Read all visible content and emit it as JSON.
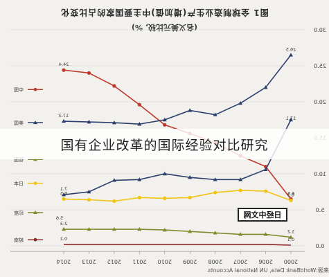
{
  "header": {
    "title": "图1 全球制造业生产(增加值)中主要国家的占比变化",
    "subtitle": "(名义美元比较, %)"
  },
  "overlay_caption": "国有企业改革的国际经验对比研究",
  "stamp_text": "日经中文网",
  "source_text": "来源:WorldBank Data, UN National Accounts",
  "colors": {
    "background": "#f3f1ee",
    "china": "#c0392b",
    "usa": "#2c3e6b",
    "japan": "#f1c40f",
    "germany": "#7f8c2a",
    "india": "#8e2a2a",
    "grid": "#cfcfcf"
  },
  "chart_data": {
    "type": "line",
    "x": [
      "2014",
      "2013",
      "2012",
      "2011",
      "2010",
      "2009",
      "2008",
      "2007",
      "2006",
      "2000"
    ],
    "ylim": [
      0,
      30
    ],
    "yticks": [
      "0.0",
      "5.0",
      "10.0",
      "15.0",
      "20.0",
      "25.0",
      "30.0"
    ],
    "series": [
      {
        "name": "中国",
        "color": "#c0392b",
        "marker": "circle",
        "values": [
          24.4,
          24.0,
          22.2,
          19.6,
          16.8,
          15.6,
          14.3,
          12.5,
          11.0,
          6.5
        ],
        "first_label": "24.4",
        "last_label": "6.5"
      },
      {
        "name": "美国",
        "color": "#2c3e6b",
        "marker": "triangle",
        "values": [
          17.3,
          17.2,
          17.1,
          16.9,
          17.5,
          18.8,
          18.2,
          19.8,
          22.0,
          26.5
        ],
        "first_label": "17.3",
        "last_label": "26.5",
        "end_label": "17.1"
      },
      {
        "name": "德国",
        "color": "#2c3e6b",
        "marker": "triangle",
        "values": [
          7.1,
          7.5,
          9.1,
          9.2,
          10.0,
          9.5,
          9.2,
          9.2,
          10.6,
          17.5
        ],
        "first_label": "7.1",
        "last_label": ""
      },
      {
        "name": "日本",
        "color": "#f1c40f",
        "marker": "circle",
        "values": [
          6.5,
          6.4,
          6.2,
          6.7,
          6.6,
          6.7,
          7.4,
          7.7,
          7.6,
          6.3
        ],
        "first_label": "6.5",
        "last_label": "6.3"
      },
      {
        "name": "印度",
        "color": "#7f8c2a",
        "marker": "triangle",
        "values": [
          2.3,
          2.3,
          2.3,
          2.3,
          2.2,
          2.0,
          1.8,
          1.6,
          1.6,
          1.2
        ],
        "first_label": "2.3",
        "last_label": "1.2"
      },
      {
        "name": "越南",
        "color": "#8e2a2a",
        "marker": "none",
        "values": [
          0.2,
          0.2,
          0.2,
          0.2,
          0.2,
          0.2,
          0.2,
          0.2,
          0.2,
          0.1
        ],
        "first_label": "0.2",
        "last_label": "0.1"
      }
    ],
    "left_labels": [
      "中国",
      "美国",
      "德国",
      "日本",
      "印度",
      "越南"
    ],
    "extra_left_value": "5.6",
    "grid": true,
    "legend": "left"
  }
}
